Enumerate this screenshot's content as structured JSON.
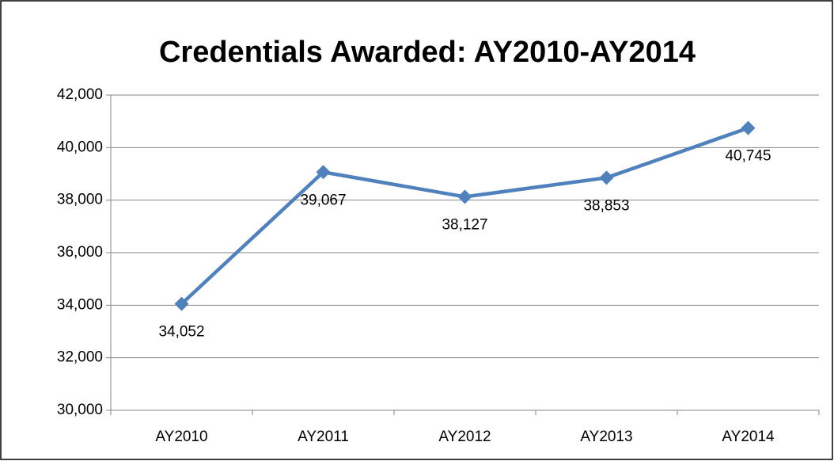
{
  "chart_data": {
    "type": "line",
    "title": "Credentials Awarded: AY2010-AY2014",
    "categories": [
      "AY2010",
      "AY2011",
      "AY2012",
      "AY2013",
      "AY2014"
    ],
    "values": [
      34052,
      39067,
      38127,
      38853,
      40745
    ],
    "value_labels": [
      "34,052",
      "39,067",
      "38,127",
      "38,853",
      "40,745"
    ],
    "color": "#4f81bd",
    "ylim": [
      30000,
      42000
    ],
    "yticks": [
      {
        "value": 30000,
        "label": "30,000"
      },
      {
        "value": 32000,
        "label": "32,000"
      },
      {
        "value": 34000,
        "label": "34,000"
      },
      {
        "value": 36000,
        "label": "36,000"
      },
      {
        "value": 38000,
        "label": "38,000"
      },
      {
        "value": 40000,
        "label": "40,000"
      },
      {
        "value": 42000,
        "label": "42,000"
      }
    ],
    "grid": true
  }
}
